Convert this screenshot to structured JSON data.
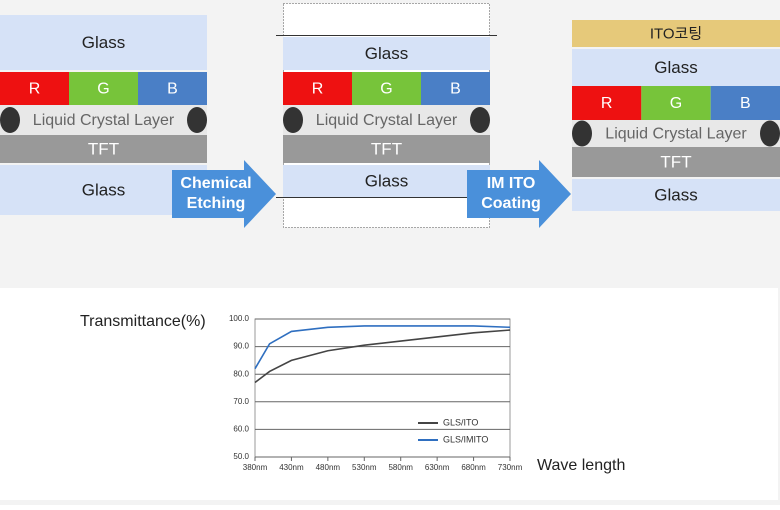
{
  "diagram": {
    "before": {
      "glass_top": "Glass",
      "r": "R",
      "g": "G",
      "b": "B",
      "lc": "Liquid Crystal Layer",
      "tft": "TFT",
      "glass_bottom": "Glass"
    },
    "etched": {
      "glass_top": "Glass",
      "r": "R",
      "g": "G",
      "b": "B",
      "lc": "Liquid Crystal Layer",
      "tft": "TFT",
      "glass_bottom": "Glass"
    },
    "coated": {
      "ito": "ITO코팅",
      "glass_top": "Glass",
      "r": "R",
      "g": "G",
      "b": "B",
      "lc": "Liquid Crystal Layer",
      "tft": "TFT",
      "glass_bottom": "Glass"
    },
    "arrow_etching": [
      "Chemical",
      "Etching"
    ],
    "arrow_coating": [
      "IM ITO",
      "Coating"
    ]
  },
  "chart_data": {
    "type": "line",
    "y_label": "Transmittance(%)",
    "x_label": "Wave length",
    "x": [
      380,
      400,
      430,
      480,
      530,
      580,
      630,
      680,
      730
    ],
    "series": [
      {
        "name": "GLS/ITO",
        "color": "#444444",
        "values": [
          77,
          81,
          85,
          88.5,
          90.5,
          92,
          93.5,
          95,
          96
        ]
      },
      {
        "name": "GLS/IMITO",
        "color": "#2f6fc0",
        "values": [
          82,
          91,
          95.5,
          97,
          97.5,
          97.5,
          97.5,
          97.5,
          97
        ]
      }
    ],
    "xlim": [
      380,
      730
    ],
    "ylim": [
      50,
      100
    ],
    "xticks": [
      {
        "value": 380,
        "label": "380nm"
      },
      {
        "value": 430,
        "label": "430nm"
      },
      {
        "value": 480,
        "label": "480nm"
      },
      {
        "value": 530,
        "label": "530nm"
      },
      {
        "value": 580,
        "label": "580nm"
      },
      {
        "value": 630,
        "label": "630nm"
      },
      {
        "value": 680,
        "label": "680nm"
      },
      {
        "value": 730,
        "label": "730nm"
      }
    ],
    "yticks": [
      {
        "value": 50,
        "label": "50.0"
      },
      {
        "value": 60,
        "label": "60.0"
      },
      {
        "value": 70,
        "label": "70.0"
      },
      {
        "value": 80,
        "label": "80.0"
      },
      {
        "value": 90,
        "label": "90.0"
      },
      {
        "value": 100,
        "label": "100.0"
      }
    ],
    "grid": true,
    "legend": "lower right"
  }
}
